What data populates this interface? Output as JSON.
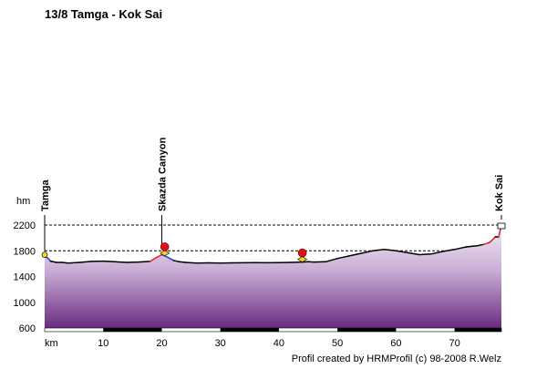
{
  "chart_data": {
    "type": "area",
    "title": "13/8 Tamga - Kok Sai",
    "ylabel": "hm",
    "xlabel": "km",
    "ylim": [
      600,
      2200
    ],
    "xlim": [
      0,
      78
    ],
    "y_ticks": [
      600,
      1000,
      1400,
      1800,
      2200
    ],
    "x_ticks": [
      10,
      20,
      30,
      40,
      50,
      60,
      70
    ],
    "credit": "Profil created by HRMProfil (c) 98-2008 R.Welz",
    "places": [
      {
        "name": "Tamga",
        "km": 0
      },
      {
        "name": "Skazda Canyon",
        "km": 20
      },
      {
        "name": "Kok Sai",
        "km": 78
      }
    ],
    "markers": [
      {
        "km": 20.5,
        "type": "red-dot"
      },
      {
        "km": 44,
        "type": "red-dot"
      }
    ],
    "profile": {
      "x": [
        0,
        0.5,
        1,
        2,
        3,
        4,
        6,
        8,
        10,
        12,
        14,
        16,
        18,
        19,
        20,
        21,
        22,
        23,
        24,
        26,
        28,
        30,
        32,
        34,
        36,
        38,
        40,
        42,
        44,
        45,
        46,
        48,
        50,
        52,
        54,
        56,
        58,
        60,
        62,
        64,
        66,
        68,
        70,
        72,
        74,
        75,
        76,
        77,
        77.5,
        78
      ],
      "y": [
        1710,
        1690,
        1640,
        1620,
        1620,
        1610,
        1620,
        1635,
        1640,
        1630,
        1620,
        1625,
        1635,
        1690,
        1740,
        1700,
        1650,
        1630,
        1620,
        1610,
        1612,
        1610,
        1612,
        1614,
        1615,
        1614,
        1615,
        1620,
        1625,
        1630,
        1625,
        1630,
        1680,
        1720,
        1760,
        1800,
        1820,
        1800,
        1770,
        1740,
        1750,
        1790,
        1820,
        1860,
        1880,
        1900,
        1930,
        2020,
        2010,
        2200
      ]
    }
  }
}
